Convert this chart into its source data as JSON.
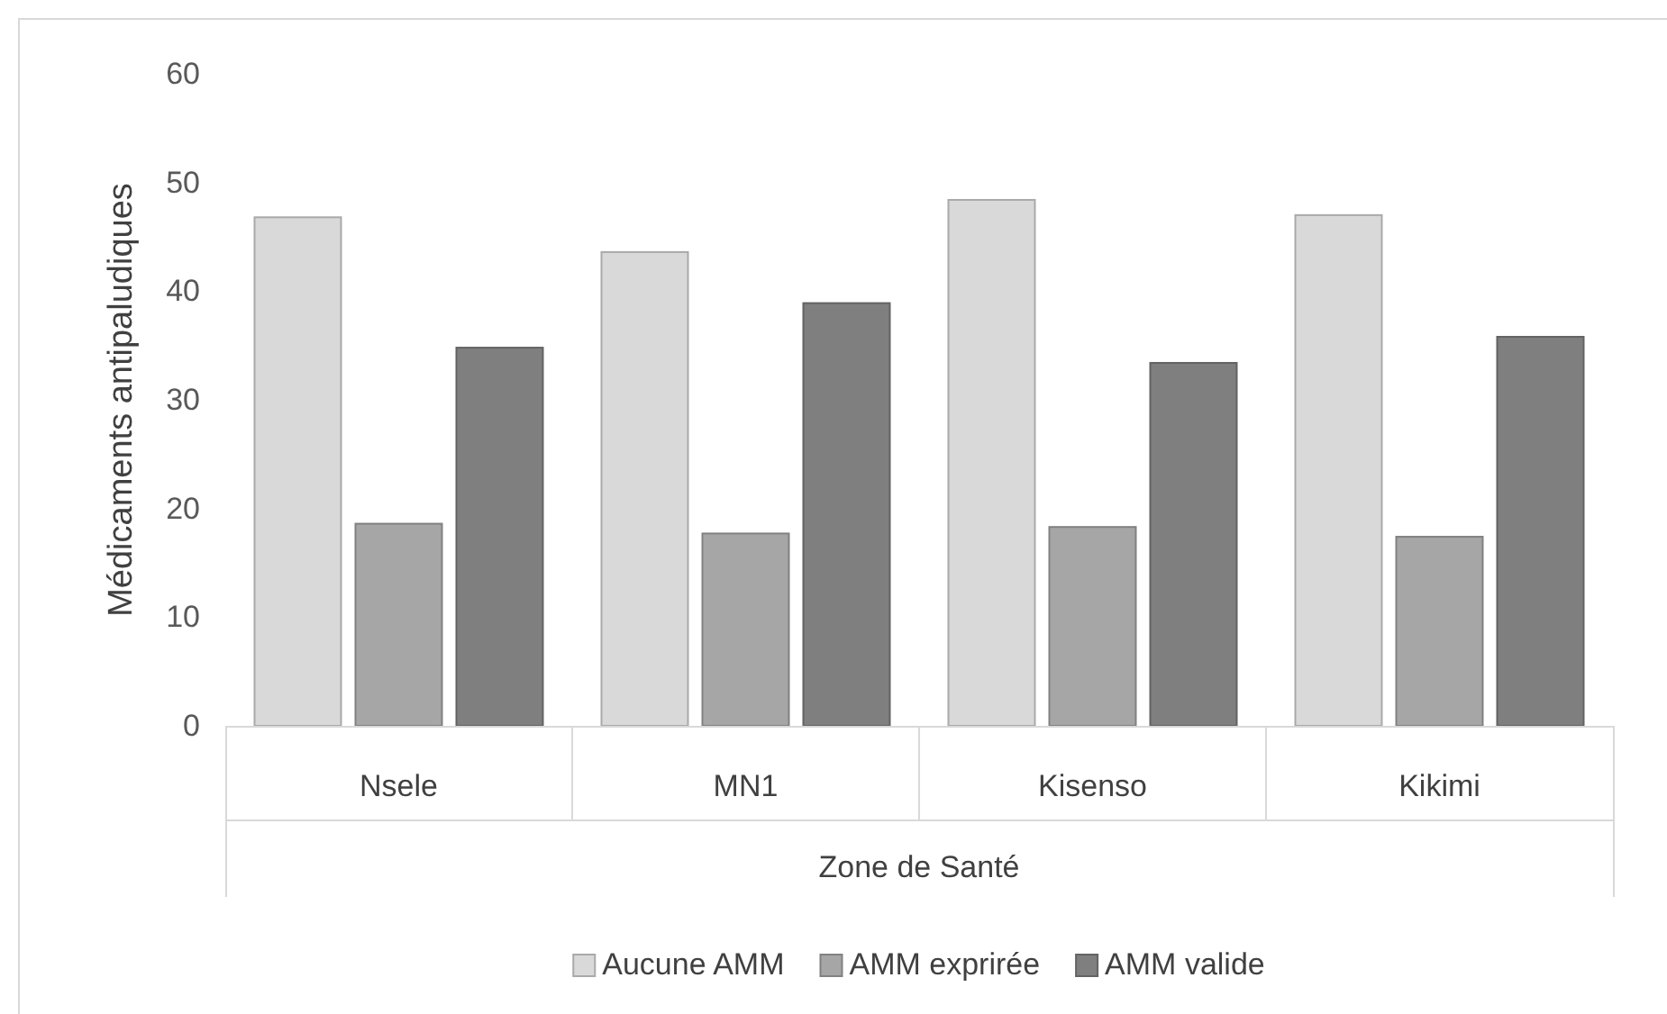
{
  "chart_data": {
    "type": "bar",
    "xlabel": "Zone de Santé",
    "ylabel": "Médicaments antipaludiques",
    "categories": [
      "Nsele",
      "MN1",
      "Kisenso",
      "Kikimi"
    ],
    "series": [
      {
        "name": "Aucune AMM",
        "color": "#d9d9d9",
        "values": [
          46.8,
          43.6,
          48.4,
          47
        ]
      },
      {
        "name": "AMM exprirée",
        "color": "#a6a6a6",
        "values": [
          18.6,
          17.7,
          18.3,
          17.4
        ]
      },
      {
        "name": "AMM valide",
        "color": "#7f7f7f",
        "values": [
          34.8,
          38.9,
          33.4,
          35.8
        ]
      }
    ],
    "ylim": [
      0,
      60
    ],
    "yticks": [
      0,
      10,
      20,
      30,
      40,
      50,
      60
    ],
    "grid": false,
    "legend": "bottom"
  }
}
